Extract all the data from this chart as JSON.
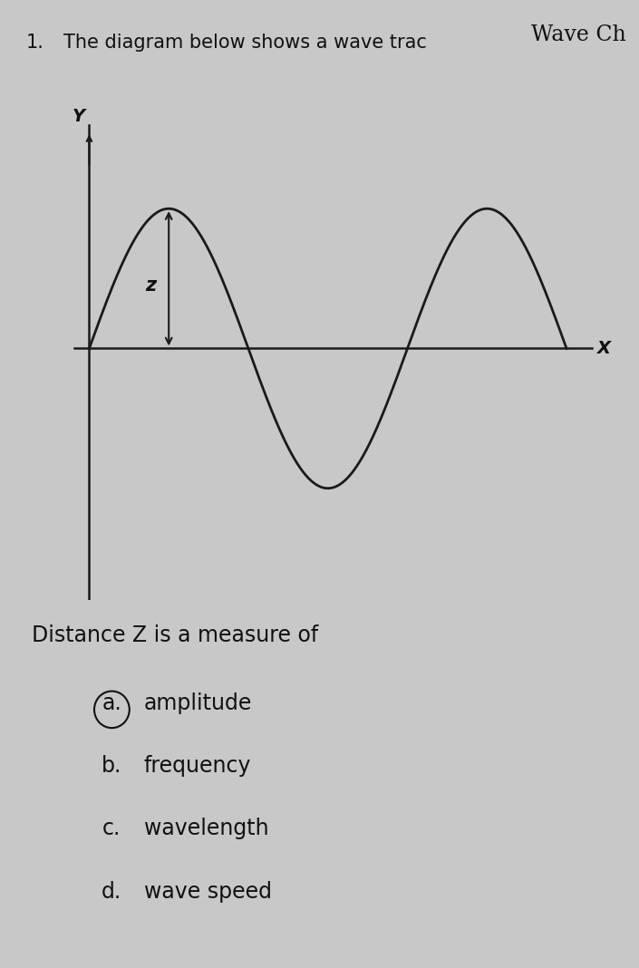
{
  "title_top_right": "Wave Ch",
  "question_number": "1.",
  "question_line1": "The diagram below shows a wave trac",
  "bg_color": "#c8c8c8",
  "wave_color": "#1a1a1a",
  "axis_color": "#1a1a1a",
  "text_color": "#111111",
  "x_label": "X",
  "y_label": "Y",
  "z_label": "z",
  "answer_text": "Distance Z is a measure of",
  "options": [
    {
      "letter": "a.",
      "text": "amplitude",
      "circled": true
    },
    {
      "letter": "b.",
      "text": "frequency",
      "circled": false
    },
    {
      "letter": "c.",
      "text": "wavelength",
      "circled": false
    },
    {
      "letter": "d.",
      "text": "wave speed",
      "circled": false
    }
  ],
  "font_size_title": 17,
  "font_size_question": 15,
  "font_size_options": 17,
  "font_size_answer": 17,
  "font_size_axis": 14,
  "font_size_z": 15
}
